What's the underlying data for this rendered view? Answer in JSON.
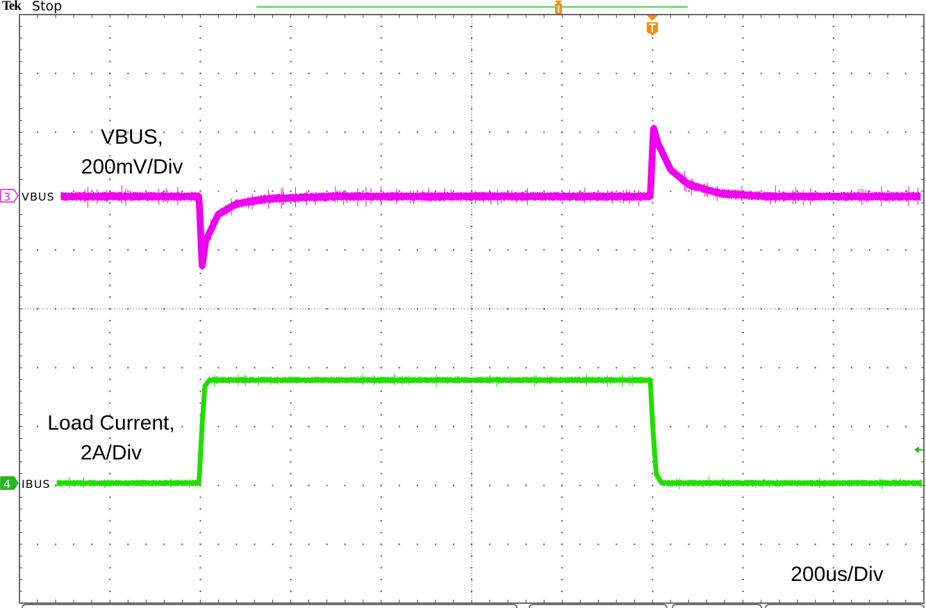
{
  "header": {
    "brand": "Tek",
    "state": "Stop"
  },
  "annotations": {
    "vbus_line1": "VBUS,",
    "vbus_line2": "200mV/Div",
    "ibus_line1": "Load Current,",
    "ibus_line2": "2A/Div",
    "timebase": "200us/Div"
  },
  "colors": {
    "ch3": "#ee00ee",
    "ch4": "#22dd00",
    "trigger": "#ff8c00",
    "grid": "#555555"
  },
  "chart_data": {
    "type": "line",
    "title": "",
    "grid": true,
    "divisions": {
      "x": 10,
      "y": 10
    },
    "timebase_us_per_div": 200,
    "xlim_us": [
      0,
      2000
    ],
    "trigger_time_us": 1400,
    "series": [
      {
        "name": "VBUS",
        "channel": "3",
        "scale": "200mV/Div",
        "unit": "mV relative to channel reference",
        "color": "#ee00ee",
        "points": [
          [
            0,
            0
          ],
          [
            397,
            0
          ],
          [
            404,
            -236
          ],
          [
            412,
            -150
          ],
          [
            440,
            -60
          ],
          [
            480,
            -25
          ],
          [
            550,
            -8
          ],
          [
            700,
            0
          ],
          [
            1395,
            0
          ],
          [
            1402,
            233
          ],
          [
            1412,
            180
          ],
          [
            1440,
            90
          ],
          [
            1480,
            40
          ],
          [
            1550,
            10
          ],
          [
            1650,
            0
          ],
          [
            2000,
            0
          ]
        ]
      },
      {
        "name": "IBUS",
        "channel": "4",
        "scale": "2A/Div",
        "unit": "A relative to channel reference",
        "color": "#22dd00",
        "points": [
          [
            0,
            0
          ],
          [
            397,
            0
          ],
          [
            404,
            2
          ],
          [
            410,
            3.3
          ],
          [
            420,
            3.5
          ],
          [
            1395,
            3.5
          ],
          [
            1400,
            2
          ],
          [
            1408,
            0.3
          ],
          [
            1420,
            0
          ],
          [
            2000,
            0
          ]
        ]
      }
    ]
  }
}
